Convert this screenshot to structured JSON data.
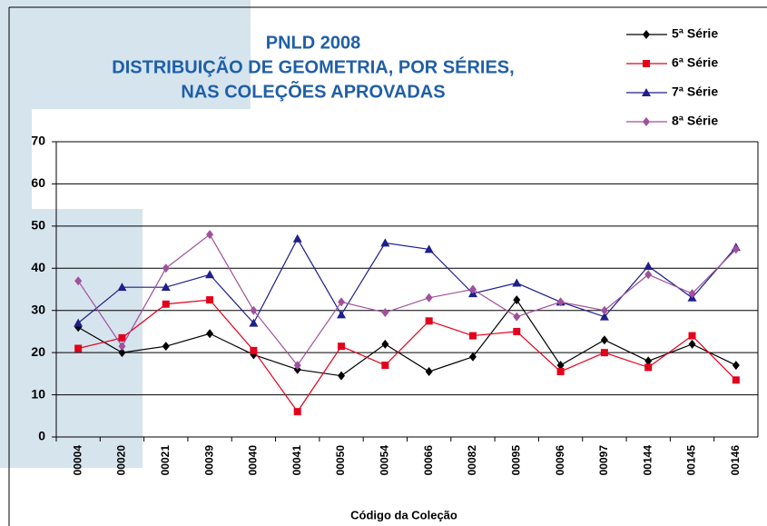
{
  "chart_data": {
    "type": "line",
    "title": [
      "PNLD 2008",
      "DISTRIBUIÇÃO DE GEOMETRIA, POR SÉRIES,",
      "NAS COLEÇÕES APROVADAS"
    ],
    "x_label": "Código da Coleção",
    "categories": [
      "00004",
      "00020",
      "00021",
      "00039",
      "00040",
      "00041",
      "00050",
      "00054",
      "00066",
      "00082",
      "00095",
      "00096",
      "00097",
      "00144",
      "00145",
      "00146"
    ],
    "series": [
      {
        "name": "5ª Série",
        "color": "#000000",
        "marker": "diamond",
        "values": [
          26,
          20,
          21.5,
          24.5,
          19.5,
          16,
          14.5,
          22,
          15.5,
          19,
          32.5,
          17,
          23,
          18,
          22,
          17
        ]
      },
      {
        "name": "6ª Série",
        "color": "#e3001b",
        "marker": "square",
        "values": [
          21,
          23.5,
          31.5,
          32.5,
          20.5,
          6,
          21.5,
          17,
          27.5,
          24,
          25,
          15.5,
          20,
          16.5,
          24,
          13.5
        ]
      },
      {
        "name": "7ª Série",
        "color": "#1e1e8c",
        "marker": "triangle",
        "values": [
          27,
          35.5,
          35.5,
          38.5,
          27,
          47,
          29,
          46,
          44.5,
          34,
          36.5,
          32,
          28.5,
          40.5,
          33,
          45
        ]
      },
      {
        "name": "8ª Série",
        "color": "#a0519b",
        "marker": "diamond",
        "values": [
          37,
          21.5,
          40,
          48,
          30,
          17,
          32,
          29.5,
          33,
          35,
          28.5,
          32,
          30,
          38.5,
          34,
          44.5
        ]
      }
    ],
    "ylim": [
      0,
      70
    ],
    "yticks": [
      0,
      10,
      20,
      30,
      40,
      50,
      60,
      70
    ],
    "grid": true,
    "legend": "top-right"
  }
}
